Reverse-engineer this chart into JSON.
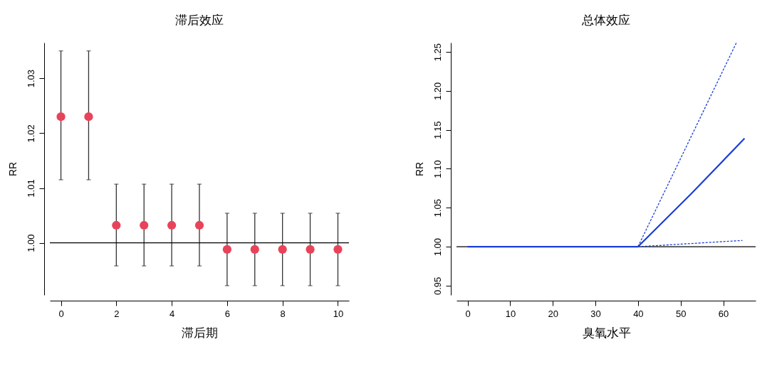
{
  "chart_data": [
    {
      "type": "scatter",
      "title": "滞后效应",
      "xlabel": "滞后期",
      "ylabel": "RR",
      "marker": "circle",
      "xlim": [
        -0.4,
        10.4
      ],
      "xticks": [
        0,
        2,
        4,
        6,
        8,
        10
      ],
      "ylim": [
        0.9905,
        1.0365
      ],
      "yticks": [
        {
          "value": 1.0,
          "label": "1.00"
        },
        {
          "value": 1.01,
          "label": "1.01"
        },
        {
          "value": 1.02,
          "label": "1.02"
        },
        {
          "value": 1.03,
          "label": "1.03"
        }
      ],
      "ref_lines": [
        {
          "axis": "y",
          "value": 1.0,
          "color": "#000000"
        }
      ],
      "series": [
        {
          "color": "#e8435a",
          "x": [
            0,
            1,
            2,
            3,
            4,
            5,
            6,
            7,
            8,
            9,
            10
          ],
          "values": [
            1.023,
            1.023,
            1.0032,
            1.0032,
            1.0032,
            1.0032,
            0.9988,
            0.9988,
            0.9988,
            0.9988,
            0.9988
          ],
          "errors": [
            [
              1.0115,
              1.035
            ],
            [
              1.0115,
              1.035
            ],
            [
              0.9958,
              1.0107
            ],
            [
              0.9958,
              1.0107
            ],
            [
              0.9958,
              1.0107
            ],
            [
              0.9958,
              1.0107
            ],
            [
              0.9922,
              1.0054
            ],
            [
              0.9922,
              1.0054
            ],
            [
              0.9922,
              1.0054
            ],
            [
              0.9922,
              1.0054
            ],
            [
              0.9922,
              1.0054
            ]
          ]
        }
      ]
    },
    {
      "type": "line",
      "title": "总体效应",
      "xlabel": "臭氧水平",
      "ylabel": "RR",
      "xlim": [
        -2.6,
        67.6
      ],
      "xticks": [
        0,
        10,
        20,
        30,
        40,
        50,
        60
      ],
      "ylim": [
        0.938,
        1.262
      ],
      "yticks": [
        {
          "value": 0.95,
          "label": "0.95"
        },
        {
          "value": 1.0,
          "label": "1.00"
        },
        {
          "value": 1.05,
          "label": "1.05"
        },
        {
          "value": 1.1,
          "label": "1.10"
        },
        {
          "value": 1.15,
          "label": "1.15"
        },
        {
          "value": 1.2,
          "label": "1.20"
        },
        {
          "value": 1.25,
          "label": "1.25"
        }
      ],
      "ref_lines": [
        {
          "axis": "y",
          "value": 1.0,
          "color": "#000000"
        }
      ],
      "series": [
        {
          "color": "#1a3fd6",
          "line_style": "dashed",
          "x": [
            40,
            63.1
          ],
          "values": [
            1.0,
            1.262
          ]
        },
        {
          "color": "#1a3fd6",
          "line_style": "dashed",
          "x": [
            40,
            64.5
          ],
          "values": [
            1.0,
            1.008
          ]
        },
        {
          "color": "#1a3fd6",
          "line_style": "solid",
          "x": [
            0,
            40,
            52.5,
            65
          ],
          "values": [
            1.0,
            1.0,
            1.068,
            1.139
          ]
        }
      ]
    }
  ]
}
